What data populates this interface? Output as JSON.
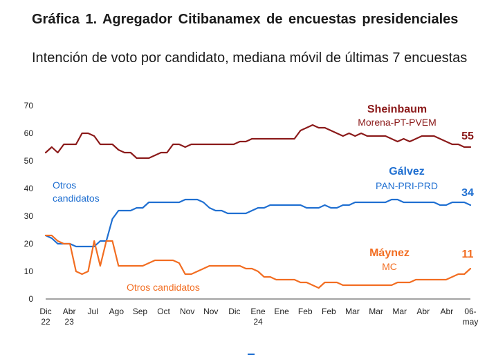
{
  "title": "Gráfica 1. Agregador Citibanamex  de encuestas presidenciales",
  "subtitle": "Intención de voto por candidato, mediana móvil de últimas 7 encuestas",
  "chart_data": {
    "type": "line",
    "ylim": [
      0,
      70
    ],
    "yticks": [
      "70",
      "60",
      "50",
      "40",
      "30",
      "20",
      "10",
      "0"
    ],
    "xticks": [
      [
        "Dic",
        "22"
      ],
      [
        "Abr",
        "23"
      ],
      [
        "Jul",
        ""
      ],
      [
        "Ago",
        ""
      ],
      [
        "Sep",
        ""
      ],
      [
        "Oct",
        ""
      ],
      [
        "Nov",
        ""
      ],
      [
        "Nov",
        ""
      ],
      [
        "Dic",
        ""
      ],
      [
        "Ene",
        "24"
      ],
      [
        "Ene",
        ""
      ],
      [
        "Feb",
        ""
      ],
      [
        "Feb",
        ""
      ],
      [
        "Mar",
        ""
      ],
      [
        "Mar",
        ""
      ],
      [
        "Mar",
        ""
      ],
      [
        "Abr",
        ""
      ],
      [
        "Abr",
        ""
      ],
      [
        "06-",
        "may"
      ]
    ],
    "grid": false,
    "series": [
      {
        "name": "Sheinbaum",
        "sublabel": "Morena-PT-PVEM",
        "end_label": "55",
        "color": "#8b1a1a",
        "values": [
          53,
          55,
          53,
          56,
          56,
          56,
          60,
          60,
          59,
          56,
          56,
          56,
          54,
          53,
          53,
          51,
          51,
          51,
          52,
          53,
          53,
          56,
          56,
          55,
          56,
          56,
          56,
          56,
          56,
          56,
          56,
          56,
          57,
          57,
          58,
          58,
          58,
          58,
          58,
          58,
          58,
          58,
          61,
          62,
          63,
          62,
          62,
          61,
          60,
          59,
          60,
          59,
          60,
          59,
          59,
          59,
          59,
          58,
          57,
          58,
          57,
          58,
          59,
          59,
          59,
          58,
          57,
          56,
          56,
          55,
          55
        ]
      },
      {
        "name": "Gálvez",
        "sublabel": "PAN-PRI-PRD",
        "end_label": "34",
        "color": "#1f6fd1",
        "values": [
          23,
          22,
          20,
          20,
          20,
          19,
          19,
          19,
          19,
          21,
          21,
          29,
          32,
          32,
          32,
          33,
          33,
          35,
          35,
          35,
          35,
          35,
          35,
          36,
          36,
          36,
          35,
          33,
          32,
          32,
          31,
          31,
          31,
          31,
          32,
          33,
          33,
          34,
          34,
          34,
          34,
          34,
          34,
          33,
          33,
          33,
          34,
          33,
          33,
          34,
          34,
          35,
          35,
          35,
          35,
          35,
          35,
          36,
          36,
          35,
          35,
          35,
          35,
          35,
          35,
          34,
          34,
          35,
          35,
          35,
          34
        ]
      },
      {
        "name": "Máynez",
        "sublabel": "MC",
        "end_label": "11",
        "color": "#f26d21",
        "values": [
          23,
          23,
          21,
          20,
          20,
          10,
          9,
          10,
          21,
          12,
          21,
          21,
          12,
          12,
          12,
          12,
          12,
          13,
          14,
          14,
          14,
          14,
          13,
          9,
          9,
          10,
          11,
          12,
          12,
          12,
          12,
          12,
          12,
          11,
          11,
          10,
          8,
          8,
          7,
          7,
          7,
          7,
          6,
          6,
          5,
          4,
          6,
          6,
          6,
          5,
          5,
          5,
          5,
          5,
          5,
          5,
          5,
          5,
          6,
          6,
          6,
          7,
          7,
          7,
          7,
          7,
          7,
          8,
          9,
          9,
          11
        ]
      }
    ],
    "annotations": [
      {
        "text": "Otros candidatos",
        "color": "#1f6fd1"
      },
      {
        "text": "Otros candidatos",
        "color": "#f26d21"
      }
    ]
  }
}
